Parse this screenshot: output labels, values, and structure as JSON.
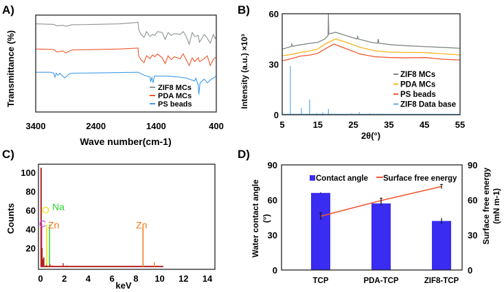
{
  "chart_data": [
    {
      "panel": "A)",
      "type": "line",
      "xlabel": "Wave number(cm-1)",
      "ylabel": "Transmittance (%)",
      "xlim": [
        3400,
        400
      ],
      "xticks": [
        "3400",
        "2400",
        "1400",
        "400"
      ],
      "ylim": [
        0,
        100
      ],
      "legend_position": "bottom-right",
      "series": [
        {
          "name": "ZIF8 MCs",
          "color": "#8c9191",
          "points": [
            [
              3400,
              91
            ],
            [
              3100,
              90.5
            ],
            [
              3050,
              89
            ],
            [
              2950,
              89.5
            ],
            [
              2900,
              88.5
            ],
            [
              2800,
              90
            ],
            [
              2000,
              91
            ],
            [
              1900,
              91.5
            ],
            [
              1700,
              92.5
            ],
            [
              1690,
              85
            ],
            [
              1650,
              80
            ],
            [
              1600,
              77
            ],
            [
              1560,
              83
            ],
            [
              1500,
              78
            ],
            [
              1460,
              80
            ],
            [
              1420,
              79
            ],
            [
              1380,
              83
            ],
            [
              1300,
              82
            ],
            [
              1250,
              75
            ],
            [
              1200,
              82
            ],
            [
              1150,
              79
            ],
            [
              1100,
              81
            ],
            [
              1000,
              80
            ],
            [
              950,
              83
            ],
            [
              900,
              78
            ],
            [
              850,
              70
            ],
            [
              800,
              82
            ],
            [
              760,
              78
            ],
            [
              700,
              79
            ],
            [
              680,
              72
            ],
            [
              600,
              80
            ],
            [
              550,
              76
            ],
            [
              500,
              71
            ],
            [
              450,
              80
            ],
            [
              420,
              76
            ],
            [
              400,
              78
            ]
          ]
        },
        {
          "name": "PDA MCs",
          "color": "#f0562c",
          "points": [
            [
              3400,
              65
            ],
            [
              3100,
              64.5
            ],
            [
              3050,
              62
            ],
            [
              2950,
              63
            ],
            [
              2900,
              61
            ],
            [
              2800,
              64
            ],
            [
              2000,
              65
            ],
            [
              1700,
              66
            ],
            [
              1690,
              58
            ],
            [
              1650,
              54
            ],
            [
              1600,
              51
            ],
            [
              1560,
              58
            ],
            [
              1500,
              55
            ],
            [
              1460,
              59
            ],
            [
              1420,
              57
            ],
            [
              1380,
              60
            ],
            [
              1300,
              56
            ],
            [
              1250,
              50
            ],
            [
              1200,
              58
            ],
            [
              1150,
              54
            ],
            [
              1100,
              57
            ],
            [
              1000,
              55
            ],
            [
              950,
              60
            ],
            [
              900,
              54
            ],
            [
              850,
              48
            ],
            [
              800,
              56
            ],
            [
              760,
              52
            ],
            [
              700,
              56
            ],
            [
              680,
              52
            ],
            [
              600,
              55
            ],
            [
              550,
              58
            ],
            [
              500,
              48
            ],
            [
              450,
              54
            ],
            [
              400,
              57
            ]
          ]
        },
        {
          "name": "PS beads",
          "color": "#3d9be9",
          "points": [
            [
              3400,
              41
            ],
            [
              3150,
              41
            ],
            [
              3100,
              40
            ],
            [
              3080,
              36
            ],
            [
              3060,
              40
            ],
            [
              3030,
              38
            ],
            [
              3000,
              40
            ],
            [
              2920,
              35
            ],
            [
              2850,
              39
            ],
            [
              2800,
              40
            ],
            [
              1700,
              41
            ],
            [
              1600,
              38
            ],
            [
              1500,
              36
            ],
            [
              1490,
              31
            ],
            [
              1470,
              36
            ],
            [
              1450,
              30
            ],
            [
              1430,
              37
            ],
            [
              1200,
              37
            ],
            [
              1000,
              36
            ],
            [
              900,
              35
            ],
            [
              760,
              32
            ],
            [
              740,
              35
            ],
            [
              700,
              28
            ],
            [
              690,
              18
            ],
            [
              670,
              30
            ],
            [
              600,
              34
            ],
            [
              550,
              30
            ],
            [
              500,
              33
            ],
            [
              450,
              35
            ],
            [
              400,
              37
            ]
          ]
        }
      ]
    },
    {
      "panel": "B)",
      "type": "line",
      "xlabel": "2θ(°)",
      "ylabel": "Intensity (a.u.) ×10³",
      "xlim": [
        5,
        55
      ],
      "xticks": [
        "5",
        "15",
        "25",
        "35",
        "45",
        "55"
      ],
      "ylim": [
        0,
        60
      ],
      "yticks": [
        "0",
        "30",
        "60"
      ],
      "legend_position": "center-right",
      "series": [
        {
          "name": "ZIF8 MCs",
          "color": "#7f8585",
          "points": [
            [
              5,
              39
            ],
            [
              7.5,
              40.5
            ],
            [
              7.7,
              42
            ],
            [
              7.9,
              40.6
            ],
            [
              10,
              41.5
            ],
            [
              13,
              42.5
            ],
            [
              15,
              43
            ],
            [
              17,
              45
            ],
            [
              17.9,
              47
            ],
            [
              18,
              60
            ],
            [
              18.1,
              48
            ],
            [
              20,
              49
            ],
            [
              23,
              47
            ],
            [
              26,
              45
            ],
            [
              26.2,
              46.5
            ],
            [
              26.4,
              45
            ],
            [
              30,
              43
            ],
            [
              31.8,
              42.5
            ],
            [
              32,
              45
            ],
            [
              32.2,
              42.5
            ],
            [
              36,
              41.5
            ],
            [
              40,
              41
            ],
            [
              45,
              40.5
            ],
            [
              55,
              39.5
            ]
          ]
        },
        {
          "name": "PDA MCs",
          "color": "#f7b21c",
          "points": [
            [
              5,
              35
            ],
            [
              8,
              36
            ],
            [
              10,
              37
            ],
            [
              13,
              38
            ],
            [
              15,
              39
            ],
            [
              17,
              42
            ],
            [
              20,
              45
            ],
            [
              23,
              43
            ],
            [
              27,
              40
            ],
            [
              31,
              38
            ],
            [
              35,
              37.2
            ],
            [
              40,
              37
            ],
            [
              44,
              37
            ],
            [
              48,
              36.5
            ],
            [
              55,
              35.5
            ]
          ]
        },
        {
          "name": "PS beads",
          "color": "#f0562c",
          "points": [
            [
              5,
              32
            ],
            [
              8,
              33.5
            ],
            [
              10,
              34.8
            ],
            [
              13,
              35.5
            ],
            [
              15,
              36.5
            ],
            [
              17,
              39
            ],
            [
              19.5,
              42
            ],
            [
              22,
              40
            ],
            [
              27,
              36
            ],
            [
              31,
              34.5
            ],
            [
              35,
              34
            ],
            [
              40,
              33.8
            ],
            [
              45,
              34
            ],
            [
              50,
              33
            ],
            [
              55,
              32.5
            ]
          ]
        },
        {
          "name": "ZIF8 Data base",
          "color": "#5aa9e6",
          "sticks": [
            [
              7.3,
              29
            ],
            [
              10.4,
              4
            ],
            [
              12.7,
              9
            ],
            [
              14.7,
              1
            ],
            [
              16.4,
              1.5
            ],
            [
              18,
              3.5
            ],
            [
              22,
              0.3
            ],
            [
              24.5,
              0.8
            ],
            [
              25.6,
              0.4
            ],
            [
              26.7,
              1.5
            ],
            [
              29.6,
              0.8
            ],
            [
              30.6,
              0.5
            ],
            [
              31.5,
              0.5
            ],
            [
              32.4,
              0.5
            ],
            [
              35,
              0.5
            ],
            [
              36.6,
              0.5
            ],
            [
              42,
              0.4
            ]
          ]
        }
      ]
    },
    {
      "panel": "C)",
      "type": "bar",
      "xlabel": "keV",
      "ylabel": "Counts",
      "xlim": [
        0,
        14.5
      ],
      "xticks": [
        "0",
        "2",
        "4",
        "6",
        "8",
        "10",
        "12",
        "14"
      ],
      "ylim": [
        0,
        110
      ],
      "yticks": [
        "20",
        "40",
        "60",
        "80",
        "100"
      ],
      "spectrum_color": "#b22222",
      "peaks": [
        [
          0.05,
          105
        ],
        [
          0.12,
          20
        ],
        [
          0.2,
          8
        ],
        [
          0.27,
          10
        ],
        [
          0.5,
          2
        ],
        [
          0.8,
          3
        ],
        [
          1.0,
          1.5
        ],
        [
          1.9,
          4
        ],
        [
          2.2,
          1.5
        ],
        [
          3,
          0.8
        ],
        [
          5,
          0.6
        ],
        [
          7,
          0.5
        ],
        [
          8.6,
          43
        ],
        [
          9.55,
          5
        ],
        [
          10,
          0.4
        ]
      ],
      "element_lines": [
        {
          "label": "O",
          "x": 0.52,
          "value": 45,
          "color": "#e4e400"
        },
        {
          "label": "Na",
          "x": 0.76,
          "value": 45,
          "color": "#2ed52e"
        },
        {
          "label": "C",
          "x": 0.1,
          "value": 45,
          "color": "#d23cf0"
        },
        {
          "label": "Zn",
          "x": 8.6,
          "value": 43,
          "color": "#f07a1e"
        }
      ],
      "annotations": [
        "O",
        "Na",
        "C",
        "Zn",
        "Zn"
      ]
    },
    {
      "panel": "D)",
      "type": "bar",
      "categories": [
        "TCP",
        "PDA-TCP",
        "ZIF8-TCP"
      ],
      "ylabel": "Water contact angle (°)",
      "ylabel_main": "Water contact angle",
      "ylabel_unit": "(°)",
      "y2label_main": "Surface free energy",
      "y2label_unit": "(mN m-1)",
      "ylim": [
        0,
        90
      ],
      "yticks": [
        "0",
        "30",
        "60",
        "90"
      ],
      "legend_position": "top",
      "series": [
        {
          "name": "Contact angle",
          "type": "bar",
          "color": "#3a2cf0",
          "values": [
            66,
            57,
            42
          ],
          "errors": [
            0.5,
            1.5,
            2.5
          ]
        },
        {
          "name": "Surface free energy",
          "type": "line",
          "color": "#f0562c",
          "values": [
            46,
            59.5,
            71.5
          ],
          "errors": [
            3,
            2,
            1.8
          ]
        }
      ]
    }
  ]
}
